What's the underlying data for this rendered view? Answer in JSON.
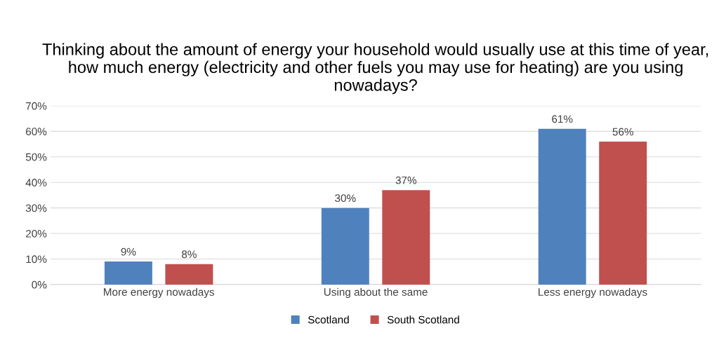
{
  "chart_data": {
    "type": "bar",
    "title": "Thinking about the amount of energy your household would usually use at this time of year, how much energy (electricity and other fuels you may use for heating) are you using nowadays?",
    "categories": [
      "More energy nowadays",
      "Using about the same",
      "Less energy nowadays"
    ],
    "series": [
      {
        "name": "Scotland",
        "color": "#4f81bd",
        "values": [
          9,
          30,
          61
        ],
        "value_labels": [
          "9%",
          "30%",
          "61%"
        ]
      },
      {
        "name": "South Scotland",
        "color": "#c0504d",
        "values": [
          8,
          37,
          56
        ],
        "value_labels": [
          "8%",
          "37%",
          "56%"
        ]
      }
    ],
    "ylim": [
      0,
      70
    ],
    "yticks": [
      {
        "value": 0,
        "label": "0%"
      },
      {
        "value": 10,
        "label": "10%"
      },
      {
        "value": 20,
        "label": "20%"
      },
      {
        "value": 30,
        "label": "30%"
      },
      {
        "value": 40,
        "label": "40%"
      },
      {
        "value": 50,
        "label": "50%"
      },
      {
        "value": 60,
        "label": "60%"
      },
      {
        "value": 70,
        "label": "70%"
      }
    ],
    "grid": "y",
    "legend": "bottom"
  }
}
